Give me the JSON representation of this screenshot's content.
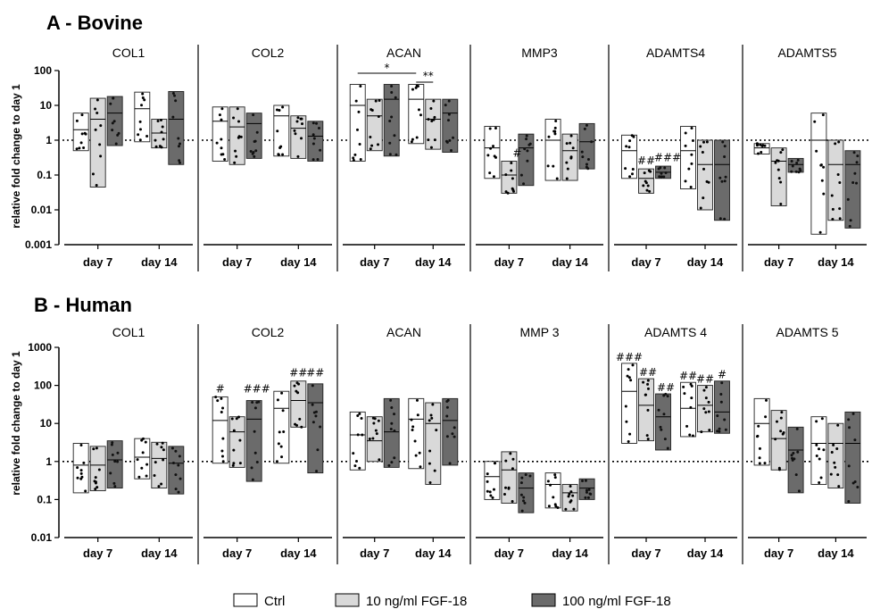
{
  "chart_data": [
    {
      "type": "bar",
      "panel": "A",
      "title": "A -  Bovine",
      "ylabel": "relative fold change to day 1",
      "yscale": "log",
      "ylim": [
        0.001,
        100
      ],
      "yticks": [
        "0.001",
        "0.01",
        "0.1",
        "1",
        "10",
        "100"
      ],
      "reference_line": 1,
      "categories": [
        "day 7",
        "day 14"
      ],
      "genes": [
        {
          "name": "COL1",
          "groups": {
            "day 7": {
              "Ctrl": [
                0.5,
                2,
                6
              ],
              "10 ng/ml FGF-18": [
                0.045,
                4,
                16
              ],
              "100 ng/ml FGF-18": [
                0.7,
                6,
                18
              ]
            },
            "day 14": {
              "Ctrl": [
                0.9,
                8,
                24
              ],
              "10 ng/ml FGF-18": [
                0.6,
                1.6,
                4
              ],
              "100 ng/ml FGF-18": [
                0.2,
                4,
                25
              ]
            }
          },
          "sig": []
        },
        {
          "name": "COL2",
          "groups": {
            "day 7": {
              "Ctrl": [
                0.25,
                3.5,
                9
              ],
              "10 ng/ml FGF-18": [
                0.2,
                2.4,
                9
              ],
              "100 ng/ml FGF-18": [
                0.3,
                3,
                6
              ]
            },
            "day 14": {
              "Ctrl": [
                0.35,
                5,
                10
              ],
              "10 ng/ml FGF-18": [
                0.3,
                2.2,
                5
              ],
              "100 ng/ml FGF-18": [
                0.25,
                1.3,
                3.5
              ]
            }
          },
          "sig": []
        },
        {
          "name": "ACAN",
          "groups": {
            "day 7": {
              "Ctrl": [
                0.25,
                10,
                40
              ],
              "10 ng/ml FGF-18": [
                0.5,
                5,
                15
              ],
              "100 ng/ml FGF-18": [
                0.35,
                15,
                40
              ]
            },
            "day 14": {
              "Ctrl": [
                0.8,
                15,
                40
              ],
              "10 ng/ml FGF-18": [
                0.55,
                4,
                15
              ],
              "100 ng/ml FGF-18": [
                0.45,
                6,
                15
              ]
            }
          },
          "sig": [
            "*",
            "**"
          ]
        },
        {
          "name": "MMP3",
          "groups": {
            "day 7": {
              "Ctrl": [
                0.08,
                0.6,
                2.5
              ],
              "10 ng/ml FGF-18": [
                0.03,
                0.1,
                0.25
              ],
              "100 ng/ml FGF-18": [
                0.05,
                0.6,
                1.5
              ]
            },
            "day 14": {
              "Ctrl": [
                0.07,
                1,
                4
              ],
              "10 ng/ml FGF-18": [
                0.07,
                0.5,
                1.5
              ],
              "100 ng/ml FGF-18": [
                0.15,
                0.9,
                3
              ]
            }
          },
          "sig": [
            "#"
          ]
        },
        {
          "name": "ADAMTS4",
          "groups": {
            "day 7": {
              "Ctrl": [
                0.08,
                0.5,
                1.4
              ],
              "10 ng/ml FGF-18": [
                0.03,
                0.08,
                0.15
              ],
              "100 ng/ml FGF-18": [
                0.08,
                0.12,
                0.18
              ]
            },
            "day 14": {
              "Ctrl": [
                0.04,
                0.5,
                2.5
              ],
              "10 ng/ml FGF-18": [
                0.01,
                0.2,
                1
              ],
              "100 ng/ml FGF-18": [
                0.005,
                0.2,
                1
              ]
            }
          },
          "sig": [
            "##",
            "###"
          ]
        },
        {
          "name": "ADAMTS5",
          "groups": {
            "day 7": {
              "Ctrl": [
                0.4,
                0.6,
                0.8
              ],
              "10 ng/ml FGF-18": [
                0.013,
                0.25,
                0.6
              ],
              "100 ng/ml FGF-18": [
                0.12,
                0.2,
                0.3
              ]
            },
            "day 14": {
              "Ctrl": [
                0.002,
                1,
                6
              ],
              "10 ng/ml FGF-18": [
                0.005,
                0.2,
                1
              ],
              "100 ng/ml FGF-18": [
                0.003,
                0.2,
                0.5
              ]
            }
          },
          "sig": []
        }
      ]
    },
    {
      "type": "bar",
      "panel": "B",
      "title": "B - Human",
      "ylabel": "relative fold change to day 1",
      "yscale": "log",
      "ylim": [
        0.01,
        1000
      ],
      "yticks": [
        "0.01",
        "0.1",
        "1",
        "10",
        "100",
        "1000"
      ],
      "reference_line": 1,
      "categories": [
        "day 7",
        "day 14"
      ],
      "genes": [
        {
          "name": "COL1",
          "groups": {
            "day 7": {
              "Ctrl": [
                0.15,
                0.8,
                3
              ],
              "10 ng/ml FGF-18": [
                0.17,
                0.8,
                2.5
              ],
              "100 ng/ml FGF-18": [
                0.2,
                1.1,
                3.5
              ]
            },
            "day 14": {
              "Ctrl": [
                0.35,
                1.3,
                4
              ],
              "10 ng/ml FGF-18": [
                0.2,
                1.2,
                3.2
              ],
              "100 ng/ml FGF-18": [
                0.14,
                0.9,
                2.5
              ]
            }
          },
          "sig": []
        },
        {
          "name": "COL2",
          "groups": {
            "day 7": {
              "Ctrl": [
                0.9,
                12,
                50
              ],
              "10 ng/ml FGF-18": [
                0.7,
                6,
                15
              ],
              "100 ng/ml FGF-18": [
                0.3,
                13,
                40
              ]
            },
            "day 14": {
              "Ctrl": [
                0.9,
                25,
                70
              ],
              "10 ng/ml FGF-18": [
                8,
                40,
                130
              ],
              "100 ng/ml FGF-18": [
                0.5,
                35,
                110
              ]
            }
          },
          "sig": [
            "#",
            "###",
            "##",
            "##"
          ]
        },
        {
          "name": "ACAN",
          "groups": {
            "day 7": {
              "Ctrl": [
                0.6,
                5,
                20
              ],
              "10 ng/ml FGF-18": [
                1,
                3.5,
                15
              ],
              "100 ng/ml FGF-18": [
                0.7,
                6,
                45
              ]
            },
            "day 14": {
              "Ctrl": [
                0.65,
                13,
                45
              ],
              "10 ng/ml FGF-18": [
                0.25,
                10,
                35
              ],
              "100 ng/ml FGF-18": [
                0.8,
                12,
                45
              ]
            }
          },
          "sig": []
        },
        {
          "name": "MMP 3",
          "groups": {
            "day 7": {
              "Ctrl": [
                0.1,
                0.4,
                1
              ],
              "10 ng/ml FGF-18": [
                0.08,
                0.6,
                1.8
              ],
              "100 ng/ml FGF-18": [
                0.045,
                0.2,
                0.5
              ]
            },
            "day 14": {
              "Ctrl": [
                0.06,
                0.25,
                0.5
              ],
              "10 ng/ml FGF-18": [
                0.05,
                0.15,
                0.25
              ],
              "100 ng/ml FGF-18": [
                0.1,
                0.2,
                0.35
              ]
            }
          },
          "sig": []
        },
        {
          "name": "ADAMTS 4",
          "groups": {
            "day 7": {
              "Ctrl": [
                3,
                70,
                380
              ],
              "10 ng/ml FGF-18": [
                3.5,
                30,
                150
              ],
              "100 ng/ml FGF-18": [
                2,
                15,
                60
              ]
            },
            "day 14": {
              "Ctrl": [
                4.5,
                25,
                120
              ],
              "10 ng/ml FGF-18": [
                6,
                30,
                100
              ],
              "100 ng/ml FGF-18": [
                5.5,
                20,
                130
              ]
            }
          },
          "sig": [
            "###",
            "##",
            "##",
            "##",
            "##",
            "#"
          ]
        },
        {
          "name": "ADAMTS 5",
          "groups": {
            "day 7": {
              "Ctrl": [
                0.8,
                10,
                45
              ],
              "10 ng/ml FGF-18": [
                0.6,
                4,
                22
              ],
              "100 ng/ml FGF-18": [
                0.15,
                2,
                8
              ]
            },
            "day 14": {
              "Ctrl": [
                0.25,
                3,
                15
              ],
              "10 ng/ml FGF-18": [
                0.2,
                3,
                10
              ],
              "100 ng/ml FGF-18": [
                0.08,
                3,
                20
              ]
            }
          },
          "sig": []
        }
      ]
    }
  ],
  "legend": {
    "entries": [
      {
        "label": "Ctrl",
        "color": "#ffffff"
      },
      {
        "label": "10 ng/ml FGF-18",
        "color": "#d9d9d9"
      },
      {
        "label": "100 ng/ml FGF-18",
        "color": "#6b6b6b"
      }
    ]
  }
}
